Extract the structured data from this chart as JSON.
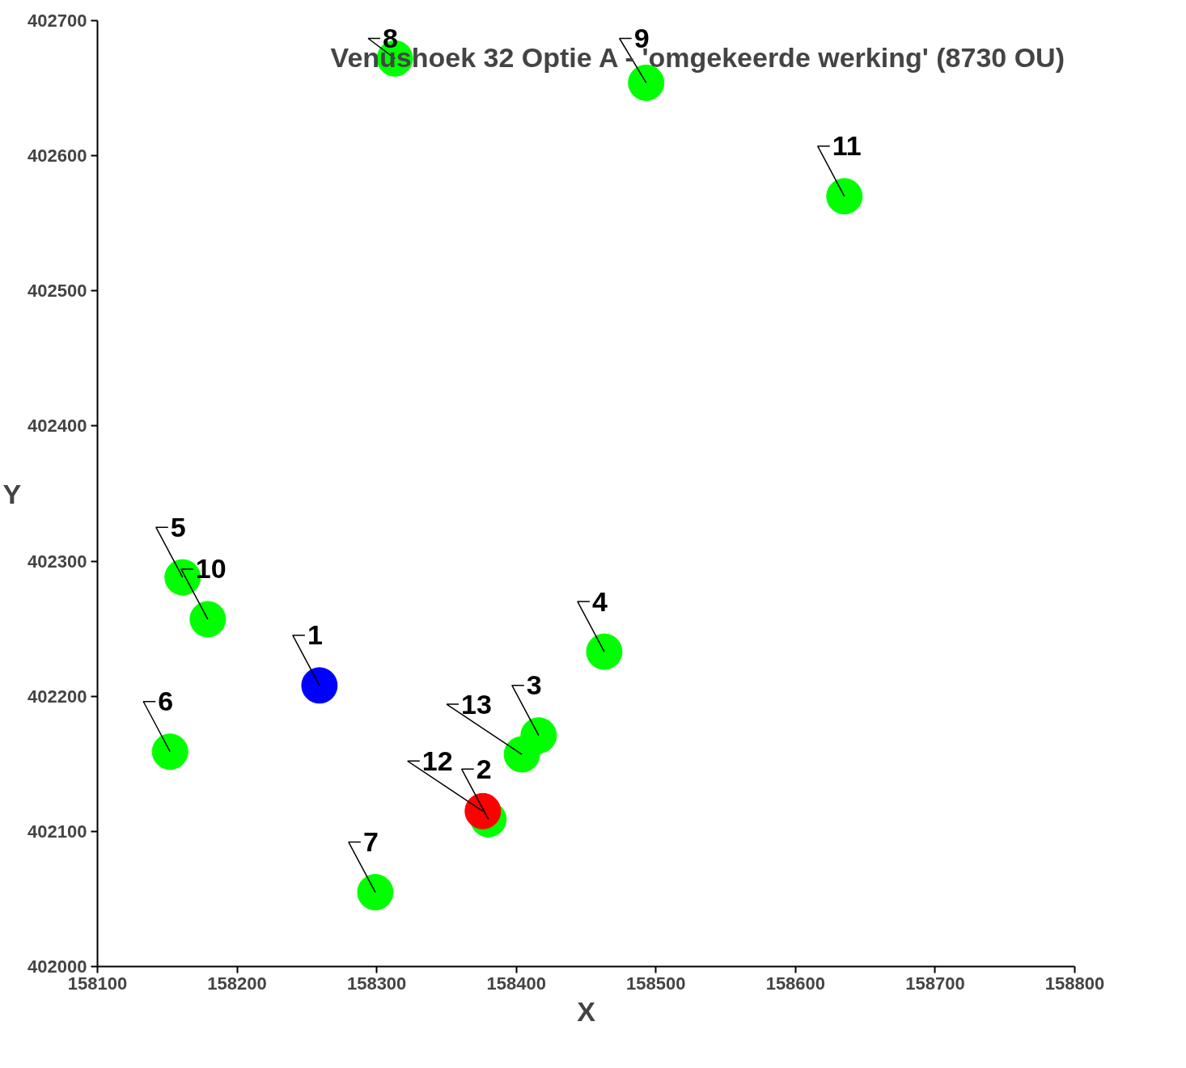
{
  "chart_data": {
    "type": "scatter",
    "title": "Venushoek 32 Optie A - 'omgekeerde werking' (8730 OU)",
    "xlabel": "X",
    "ylabel": "Y",
    "x": [
      158259,
      158380,
      158416,
      158463,
      158161,
      158152,
      158299,
      158313,
      158493,
      158179,
      158635,
      158376,
      158404
    ],
    "values": [
      402208,
      402109,
      402171,
      402233,
      402288,
      402159,
      402055,
      402672,
      402654,
      402257,
      402570,
      402115,
      402157
    ],
    "colors": [
      "#0000ff",
      "#00ff00",
      "#00ff00",
      "#00ff00",
      "#00ff00",
      "#00ff00",
      "#00ff00",
      "#00ff00",
      "#00ff00",
      "#00ff00",
      "#00ff00",
      "#ff0000",
      "#00ff00"
    ],
    "marker": "circle",
    "grid": false,
    "xlim": [
      158100,
      158800
    ],
    "xticks": [
      158100,
      158200,
      158300,
      158400,
      158500,
      158600,
      158700,
      158800
    ],
    "ylim": [
      402000,
      402700
    ],
    "yticks": [
      402000,
      402100,
      402200,
      402300,
      402400,
      402500,
      402600,
      402700
    ],
    "annotations": [
      {
        "text": "1",
        "x": 158259,
        "y": 402208
      },
      {
        "text": "2",
        "x": 158380,
        "y": 402109
      },
      {
        "text": "3",
        "x": 158416,
        "y": 402171
      },
      {
        "text": "4",
        "x": 158463,
        "y": 402233
      },
      {
        "text": "5",
        "x": 158161,
        "y": 402288
      },
      {
        "text": "6",
        "x": 158152,
        "y": 402159
      },
      {
        "text": "7",
        "x": 158299,
        "y": 402055
      },
      {
        "text": "8",
        "x": 158313,
        "y": 402672
      },
      {
        "text": "9",
        "x": 158493,
        "y": 402654
      },
      {
        "text": "10",
        "x": 158179,
        "y": 402257
      },
      {
        "text": "11",
        "x": 158635,
        "y": 402570
      },
      {
        "text": "12",
        "x": 158376,
        "y": 402115
      },
      {
        "text": "13",
        "x": 158404,
        "y": 402157
      }
    ]
  }
}
